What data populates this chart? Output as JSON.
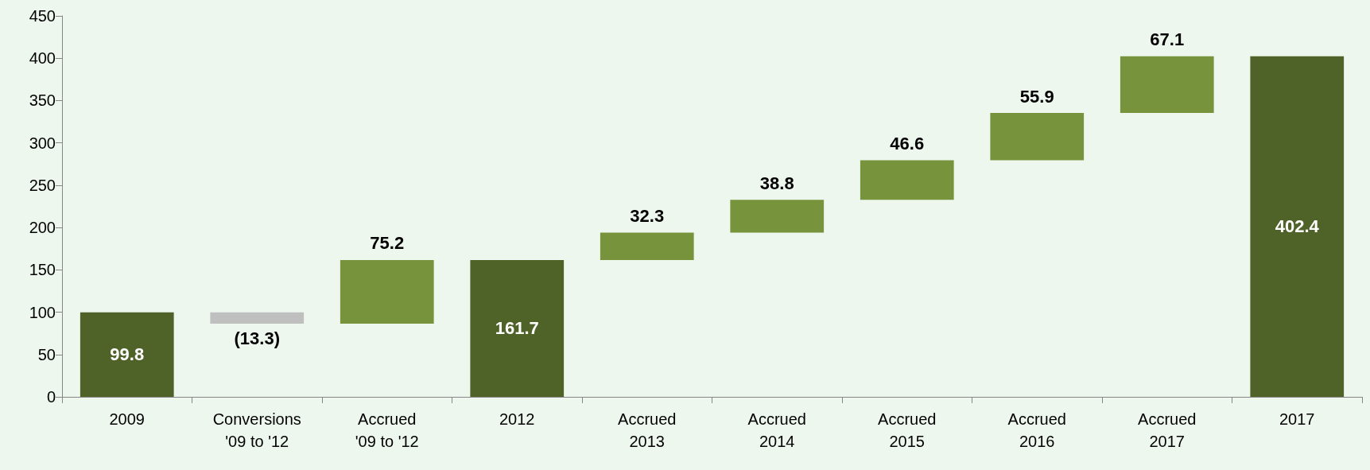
{
  "chart_data": {
    "type": "bar",
    "categories": [
      "2009",
      "Conversions\n'09 to '12",
      "Accrued\n'09 to '12",
      "2012",
      "Accrued\n2013",
      "Accrued\n2014",
      "Accrued\n2015",
      "Accrued\n2016",
      "Accrued\n2017",
      "2017"
    ],
    "values": [
      99.8,
      -13.3,
      75.2,
      161.7,
      32.3,
      38.8,
      46.6,
      55.9,
      67.1,
      402.4
    ],
    "base": [
      0,
      99.8,
      86.5,
      0,
      161.7,
      194,
      232.8,
      279.4,
      335.3,
      0
    ],
    "colors": [
      "#4f6228",
      "#bfbfbf",
      "#77933c",
      "#4f6228",
      "#77933c",
      "#77933c",
      "#77933c",
      "#77933c",
      "#77933c",
      "#4f6228"
    ],
    "value_labels": [
      "99.8",
      "(13.3)",
      "75.2",
      "161.7",
      "32.3",
      "38.8",
      "46.6",
      "55.9",
      "67.1",
      "402.4"
    ],
    "ylim": [
      0,
      450
    ],
    "yticks": [
      0,
      50,
      100,
      150,
      200,
      250,
      300,
      350,
      400,
      450
    ]
  }
}
